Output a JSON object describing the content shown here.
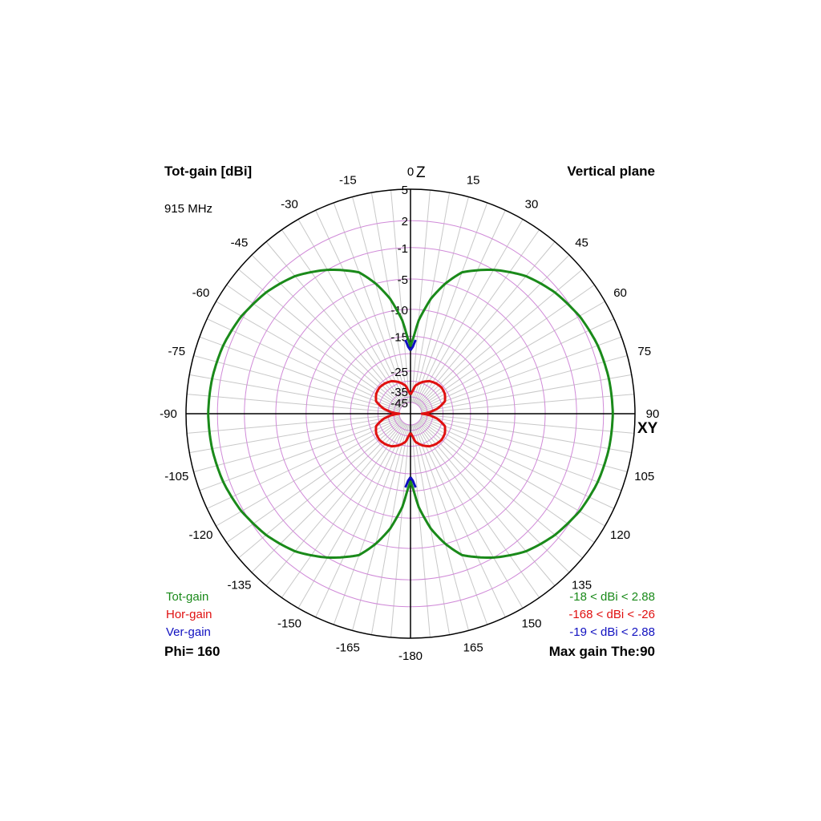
{
  "chart_data": {
    "type": "polar",
    "title": "Tot-gain [dBi]",
    "frequency": "915 MHz",
    "plane": "Vertical plane",
    "phi_label": "Phi= 160",
    "max_gain_label": "Max gain The:90",
    "axis_labels": {
      "top": "Z",
      "right": "XY"
    },
    "angle_ticks": [
      "0",
      "15",
      "30",
      "45",
      "60",
      "75",
      "90",
      "105",
      "120",
      "135",
      "150",
      "165",
      "-180",
      "-165",
      "-150",
      "-135",
      "-120",
      "-105",
      "-90",
      "-75",
      "-60",
      "-45",
      "-30",
      "-15"
    ],
    "angle_values": [
      0,
      15,
      30,
      45,
      60,
      75,
      90,
      105,
      120,
      135,
      150,
      165,
      180,
      195,
      210,
      225,
      240,
      255,
      270,
      285,
      300,
      315,
      330,
      345
    ],
    "radial_ticks": [
      "5",
      "2",
      "-1",
      "-5",
      "-10",
      "-15",
      "-25",
      "-35",
      "-45"
    ],
    "radial_values": [
      5,
      2,
      -1,
      -5,
      -10,
      -15,
      -25,
      -35,
      -45
    ],
    "grid": true,
    "colors": {
      "tot": "#1a8a1a",
      "hor": "#e01010",
      "ver": "#1010c0",
      "grid": "#d08ad8",
      "spokes": "#c8c8c8"
    },
    "series": [
      {
        "name": "Tot-gain",
        "color": "#1a8a1a",
        "range_label": "-18 < dBi < 2.88",
        "theta": [
          0,
          5,
          10,
          15,
          20,
          30,
          40,
          50,
          60,
          70,
          80,
          90,
          100,
          110,
          120,
          130,
          140,
          150,
          160,
          165,
          170,
          175,
          180
        ],
        "gain": [
          -18,
          -12,
          -8,
          -5,
          -3,
          -1,
          0.5,
          1.5,
          2.2,
          2.6,
          2.8,
          2.88,
          2.8,
          2.6,
          2.2,
          1.5,
          0.5,
          -1,
          -3,
          -5,
          -8,
          -12,
          -18
        ]
      },
      {
        "name": "Hor-gain",
        "color": "#e01010",
        "range_label": "-168 < dBi < -26",
        "theta": [
          0,
          10,
          20,
          30,
          40,
          50,
          60,
          70,
          80,
          85,
          90,
          95,
          100,
          110,
          120,
          130,
          140,
          150,
          160,
          170,
          180
        ],
        "gain": [
          -38,
          -32,
          -29.5,
          -27.5,
          -26.5,
          -26,
          -26.5,
          -28,
          -33,
          -37,
          -45,
          -37,
          -33,
          -28,
          -26.5,
          -26,
          -26.5,
          -27.5,
          -29.5,
          -32,
          -38
        ]
      },
      {
        "name": "Ver-gain",
        "color": "#1010c0",
        "range_label": "-19 < dBi < 2.88",
        "theta": [
          0,
          2,
          4,
          176,
          178,
          180
        ],
        "gain": [
          -19,
          -18,
          -16,
          -16,
          -18,
          -19
        ]
      }
    ]
  }
}
